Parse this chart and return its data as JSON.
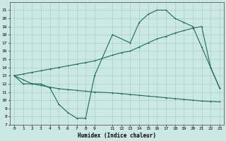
{
  "bg_color": "#cce8e4",
  "grid_color": "#a8d0cb",
  "line_color": "#1a6b5a",
  "xlabel": "Humidex (Indice chaleur)",
  "xlim": [
    -0.5,
    23.5
  ],
  "ylim": [
    7,
    22
  ],
  "yticks": [
    7,
    8,
    9,
    10,
    11,
    12,
    13,
    14,
    15,
    16,
    17,
    18,
    19,
    20,
    21
  ],
  "xticks": [
    0,
    1,
    2,
    3,
    4,
    5,
    6,
    7,
    8,
    9,
    11,
    12,
    13,
    14,
    15,
    16,
    17,
    18,
    19,
    20,
    21,
    22,
    23
  ],
  "xtick_labels": [
    "0",
    "1",
    "2",
    "3",
    "4",
    "5",
    "6",
    "7",
    "8",
    "9",
    "11",
    "12",
    "13",
    "14",
    "15",
    "16",
    "17",
    "18",
    "19",
    "20",
    "21",
    "22",
    "23"
  ],
  "line1_x": [
    0,
    1,
    2,
    3,
    4,
    5,
    6,
    7,
    8,
    9,
    11,
    13,
    14,
    15,
    16,
    17,
    18,
    19,
    20,
    21,
    22,
    23
  ],
  "line1_y": [
    13.0,
    12.0,
    12.0,
    12.0,
    11.5,
    9.5,
    8.5,
    7.8,
    7.8,
    13.0,
    18.0,
    17.0,
    19.5,
    20.5,
    21.0,
    21.0,
    20.0,
    19.5,
    19.0,
    16.5,
    14.0,
    11.5
  ],
  "line2_x": [
    0,
    1,
    2,
    3,
    4,
    5,
    6,
    7,
    8,
    9,
    11,
    12,
    13,
    14,
    15,
    16,
    17,
    18,
    19,
    20,
    21,
    22,
    23
  ],
  "line2_y": [
    13.0,
    13.2,
    13.4,
    13.6,
    13.8,
    14.0,
    14.2,
    14.4,
    14.6,
    14.8,
    15.5,
    15.8,
    16.0,
    16.5,
    17.0,
    17.5,
    17.8,
    18.2,
    18.5,
    18.8,
    19.0,
    14.0,
    11.5
  ],
  "line3_x": [
    0,
    1,
    2,
    3,
    4,
    5,
    6,
    7,
    8,
    9,
    11,
    12,
    13,
    14,
    15,
    16,
    17,
    18,
    19,
    20,
    21,
    22,
    23
  ],
  "line3_y": [
    13.0,
    12.5,
    12.0,
    11.8,
    11.6,
    11.4,
    11.3,
    11.2,
    11.1,
    11.0,
    10.9,
    10.8,
    10.7,
    10.6,
    10.5,
    10.4,
    10.3,
    10.2,
    10.1,
    10.0,
    9.9,
    9.85,
    9.8
  ]
}
